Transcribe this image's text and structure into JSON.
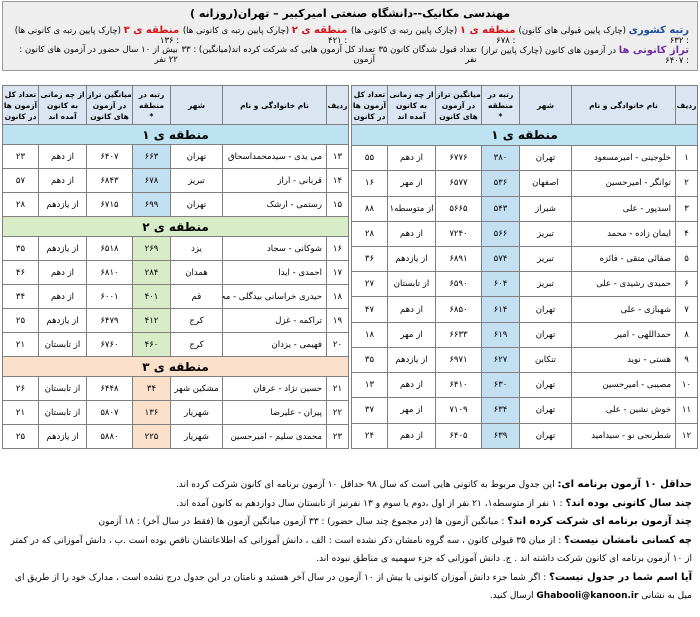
{
  "header": {
    "title": "مهندسی مکانیک--دانشگاه صنعتی امیرکبیر – تهران(روزانه )",
    "row1": [
      {
        "label": "رتبه کشوری",
        "text": "(چارک پایین قبولی های کانون) : ۶۳۲"
      },
      {
        "label": "منطقه ی ۱",
        "text": "(چارک پایین رتبه ی کانونی ها) : ۶۷۸"
      },
      {
        "label": "منطقه ی ۲",
        "text": "(چارک پایین رتبه ی کانونی ها) : ۴۲۱"
      },
      {
        "label": "منطقه ی ۳",
        "text": "(چارک پایین رتبه ی کانونی ها) : ۱۳۶"
      }
    ],
    "row2": [
      {
        "label": "تراز کانونی ها",
        "text": "در آزمون های کانون (چارک پایین تراز) : ۶۴۰۷"
      },
      {
        "text": "تعداد قبول شدگان کانون ۳۵ نفر"
      },
      {
        "text": "تعداد کل آزمون هایی که شرکت کرده اند(میانگین) : ۳۳ آزمون"
      },
      {
        "text": "بیش از ۱۰ سال حضور در آزمون های کانون : ۲۲ نفر"
      }
    ]
  },
  "tables": [
    {
      "columns": [
        "ردیف",
        "نام خانوادگی و نام",
        "شهر",
        "رتبه در منطقه",
        "میانگین تراز در آزمون های کانون",
        "از چه زمانی به کانون آمده اند",
        "تعداد کل آزمون ها در کانون"
      ],
      "rank_note": "*",
      "sections": [
        {
          "title": "منطقه ی ۱",
          "rows": [
            [
              "۱",
              "خلوجینی - امیرمسعود",
              "تهران",
              "۳۸۰",
              "۶۷۷۶",
              "از دهم",
              "۵۵"
            ],
            [
              "۲",
              "توانگر - امیرحسین",
              "اصفهان",
              "۵۳۶",
              "۶۵۷۷",
              "از مهر",
              "۱۶"
            ],
            [
              "۳",
              "اسدپور - علی",
              "شیراز",
              "۵۴۳",
              "۵۶۶۵",
              "از متوسطه۱",
              "۸۸"
            ],
            [
              "۴",
              "ایمان زاده - محمد",
              "تبریز",
              "۵۶۶",
              "۷۲۴۰",
              "از دهم",
              "۲۸"
            ],
            [
              "۵",
              "صفائی متقی - فائزه",
              "تبریز",
              "۵۷۴",
              "۶۸۹۱",
              "از یازدهم",
              "۳۶"
            ],
            [
              "۶",
              "حمیدی رشیدی - علی",
              "تبریز",
              "۶۰۴",
              "۶۵۹۰",
              "از تابستان",
              "۲۷"
            ],
            [
              "۷",
              "شهبازی - علی",
              "تهران",
              "۶۱۴",
              "۶۸۵۰",
              "از دهم",
              "۴۷"
            ],
            [
              "۸",
              "حمداللهی - امیر",
              "تهران",
              "۶۱۹",
              "۶۶۳۳",
              "از مهر",
              "۱۸"
            ],
            [
              "۹",
              "هستی - نوید",
              "تنکابن",
              "۶۲۷",
              "۶۹۷۱",
              "از یازدهم",
              "۳۵"
            ],
            [
              "۱۰",
              "مصیبی - امیرحسین",
              "تهران",
              "۶۳۰",
              "۶۴۱۰",
              "از دهم",
              "۱۳"
            ],
            [
              "۱۱",
              "خوش نشین - علی",
              "تهران",
              "۶۳۴",
              "۷۱۰۹",
              "از مهر",
              "۳۷"
            ],
            [
              "۱۲",
              "شطرنجی نو - سیدامید",
              "تهران",
              "۶۳۹",
              "۶۴۰۵",
              "از دهم",
              "۲۴"
            ]
          ]
        }
      ]
    },
    {
      "columns": [
        "ردیف",
        "نام خانوادگی و نام",
        "شهر",
        "رتبه در منطقه",
        "میانگین تراز در آزمون های کانون",
        "از چه زمانی به کانون آمده اند",
        "تعداد کل آزمون ها در کانون"
      ],
      "rank_note": "*",
      "sections": [
        {
          "title": "منطقه ی ۱",
          "rows": [
            [
              "۱۳",
              "می یدی - سیدمحمداسحاق",
              "تهران",
              "۶۶۳",
              "۶۴۰۷",
              "از دهم",
              "۲۳"
            ],
            [
              "۱۴",
              "قربانی - اراز",
              "تبریز",
              "۶۷۸",
              "۶۸۴۳",
              "از دهم",
              "۵۷"
            ],
            [
              "۱۵",
              "رستمی - ارشک",
              "تهران",
              "۶۹۹",
              "۶۷۱۵",
              "از یازدهم",
              "۲۸"
            ]
          ]
        },
        {
          "title": "منطقه ی ۲",
          "rows": [
            [
              "۱۶",
              "شوکانی - سجاد",
              "یزد",
              "۲۶۹",
              "۶۵۱۸",
              "از یازدهم",
              "۳۵"
            ],
            [
              "۱۷",
              "احمدی - ایدا",
              "همدان",
              "۲۸۴",
              "۶۸۱۰",
              "از دهم",
              "۴۶"
            ],
            [
              "۱۸",
              "حیدری خراسانی بیدگلی - محمد",
              "قم",
              "۴۰۱",
              "۶۰۰۱",
              "از دهم",
              "۳۴"
            ],
            [
              "۱۹",
              "تراکمه - غزل",
              "کرج",
              "۴۱۲",
              "۶۴۷۹",
              "از یازدهم",
              "۲۵"
            ],
            [
              "۲۰",
              "فهیمی - یزدان",
              "کرج",
              "۴۶۰",
              "۶۷۶۰",
              "از تابستان",
              "۲۱"
            ]
          ]
        },
        {
          "title": "منطقه ی ۳",
          "rows": [
            [
              "۲۱",
              "حسین نژاد - عرفان",
              "مشکین شهر",
              "۳۴",
              "۶۴۴۸",
              "از تابستان",
              "۲۶"
            ],
            [
              "۲۲",
              "پیران - علیرضا",
              "شهریار",
              "۱۳۶",
              "۵۸۰۷",
              "از تابستان",
              "۲۱"
            ],
            [
              "۲۳",
              "محمدی سلیم - امیرحسین",
              "شهریار",
              "۲۲۵",
              "۵۸۸۰",
              "از یازدهم",
              "۲۵"
            ]
          ]
        }
      ]
    }
  ],
  "notes": [
    {
      "label": "حداقل ۱۰ آزمون برنامه ای:",
      "text": " این جدول مربوط به کانونی هایی است که سال ۹۸ حداقل ۱۰ آزمون برنامه ای کانون شرکت کرده اند."
    },
    {
      "label": "چند سال کانونی بوده اند؟",
      "text": " : ۱ نفر از متوسطه۱، ۲۱ نفر از اول ،دوم یا سوم و ۱۳ نفرنیز از تابستان سال دوازدهم به کانون آمده اند."
    },
    {
      "label": "چند آزمون برنامه ای شرکت کرده اند؟",
      "text": " : میانگین آزمون ها (در مجموع چند سال حضور) : ۳۳ آزمون      میانگین آزمون ها (فقط در سال آخر) : ۱۸ آزمون"
    },
    {
      "label": "چه کسانی نامشان نیست؟",
      "text": " : از میان ۳۵ قبولی کانون ، سه گروه نامشان ذکر نشده است : الف ، دانش آموزانی که اطلاعاتشان ناقص بوده است .ب ، دانش آموزانی که در کمتر از ۱۰ آزمون برنامه ای کانون شرکت داشته اند . ج. دانش آموزانی که جزء سهمیه ی مناطق نبوده اند."
    },
    {
      "label": "آیا اسم شما در جدول نیست؟",
      "text": " : اگر شما جزء دانش آموزان کانونی با بیش از ۱۰ آزمون در سال آخر هستید و نامتان در این جدول درج نشده است ، مدارک خود را از طریق ای میل به نشانی ",
      "email": "Ghabooli@kanoon.ir",
      "tail": " ارسال کنید."
    }
  ]
}
